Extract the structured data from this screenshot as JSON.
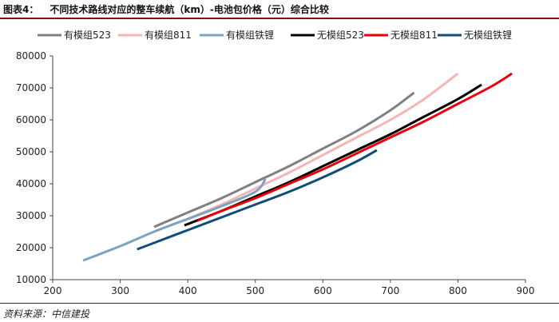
{
  "caption": {
    "label": "图表4：",
    "title": "不同技术路线对应的整车续航（km）-电池包价格（元）综合比较"
  },
  "source": "资料来源：中信建投",
  "chart_data": {
    "type": "line",
    "title": "",
    "xlabel": "",
    "ylabel": "",
    "xlim": [
      200,
      900
    ],
    "ylim": [
      10000,
      80000
    ],
    "x_ticks": [
      200,
      300,
      400,
      500,
      600,
      700,
      800,
      900
    ],
    "y_ticks": [
      10000,
      20000,
      30000,
      40000,
      50000,
      60000,
      70000,
      80000
    ],
    "grid": false,
    "legend_position": "top",
    "series": [
      {
        "name": "有模组523",
        "color": "#808080",
        "points": [
          [
            350,
            26500
          ],
          [
            400,
            31000
          ],
          [
            450,
            35500
          ],
          [
            500,
            40500
          ],
          [
            550,
            45500
          ],
          [
            600,
            51000
          ],
          [
            650,
            56500
          ],
          [
            700,
            63000
          ],
          [
            735,
            68500
          ]
        ]
      },
      {
        "name": "有模组811",
        "color": "#f4b5b5",
        "points": [
          [
            400,
            29000
          ],
          [
            450,
            33500
          ],
          [
            500,
            38500
          ],
          [
            550,
            43500
          ],
          [
            600,
            49000
          ],
          [
            650,
            54500
          ],
          [
            700,
            60000
          ],
          [
            750,
            66500
          ],
          [
            800,
            74500
          ]
        ]
      },
      {
        "name": "有模组铁锂",
        "color": "#7da3bf",
        "points": [
          [
            245,
            16000
          ],
          [
            300,
            20500
          ],
          [
            350,
            25000
          ],
          [
            400,
            29000
          ],
          [
            450,
            33000
          ],
          [
            500,
            37500
          ],
          [
            515,
            41500
          ]
        ]
      },
      {
        "name": "无模组523",
        "color": "#000000",
        "points": [
          [
            395,
            27000
          ],
          [
            450,
            31500
          ],
          [
            500,
            36000
          ],
          [
            550,
            40500
          ],
          [
            600,
            45500
          ],
          [
            650,
            50500
          ],
          [
            700,
            55500
          ],
          [
            750,
            61000
          ],
          [
            800,
            66500
          ],
          [
            835,
            71000
          ]
        ]
      },
      {
        "name": "无模组811",
        "color": "#e8000b",
        "points": [
          [
            415,
            28500
          ],
          [
            450,
            31500
          ],
          [
            500,
            35500
          ],
          [
            550,
            40000
          ],
          [
            600,
            44500
          ],
          [
            650,
            49500
          ],
          [
            700,
            54500
          ],
          [
            750,
            59500
          ],
          [
            800,
            65000
          ],
          [
            850,
            70500
          ],
          [
            880,
            74500
          ]
        ]
      },
      {
        "name": "无模组铁锂",
        "color": "#0f4d78",
        "points": [
          [
            325,
            19500
          ],
          [
            350,
            21500
          ],
          [
            400,
            25500
          ],
          [
            450,
            29500
          ],
          [
            500,
            33500
          ],
          [
            550,
            37500
          ],
          [
            600,
            42000
          ],
          [
            650,
            47000
          ],
          [
            680,
            50500
          ]
        ]
      }
    ]
  }
}
